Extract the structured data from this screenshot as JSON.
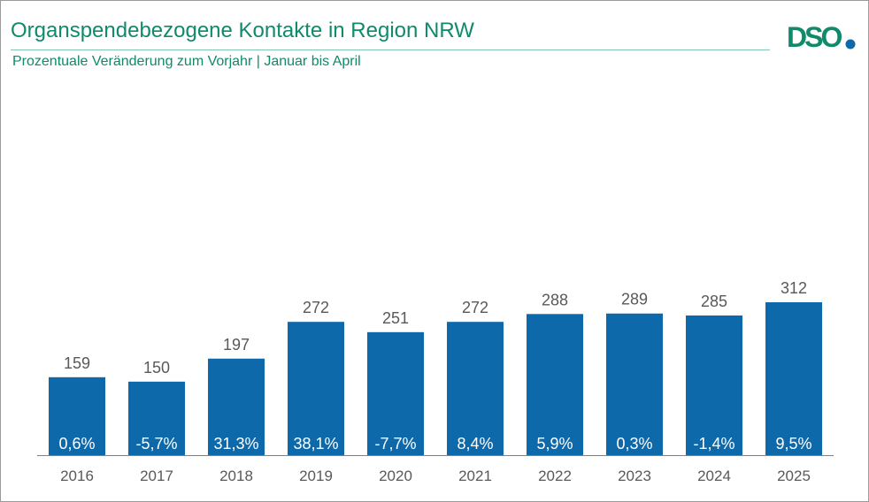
{
  "header": {
    "title": "Organspendebezogene Kontakte in Region NRW",
    "subtitle": "Prozentuale Veränderung zum Vorjahr | Januar bis April",
    "logo_text": "DSO"
  },
  "colors": {
    "bar": "#0e69ab",
    "title": "#0f8a6a",
    "logo": "#0f8a6a",
    "logo_dot": "#0e69ab",
    "axis": "#7f7f7f"
  },
  "chart_data": {
    "type": "bar",
    "categories": [
      "2016",
      "2017",
      "2018",
      "2019",
      "2020",
      "2021",
      "2022",
      "2023",
      "2024",
      "2025"
    ],
    "values": [
      159,
      150,
      197,
      272,
      251,
      272,
      288,
      289,
      285,
      312
    ],
    "change_labels": [
      "0,6%",
      "-5,7%",
      "31,3%",
      "38,1%",
      "-7,7%",
      "8,4%",
      "5,9%",
      "0,3%",
      "-1,4%",
      "9,5%"
    ],
    "title": "Organspendebezogene Kontakte in Region NRW",
    "subtitle": "Prozentuale Veränderung zum Vorjahr | Januar bis April",
    "ylim": [
      0,
      380
    ],
    "grid": false,
    "legend": "none"
  }
}
